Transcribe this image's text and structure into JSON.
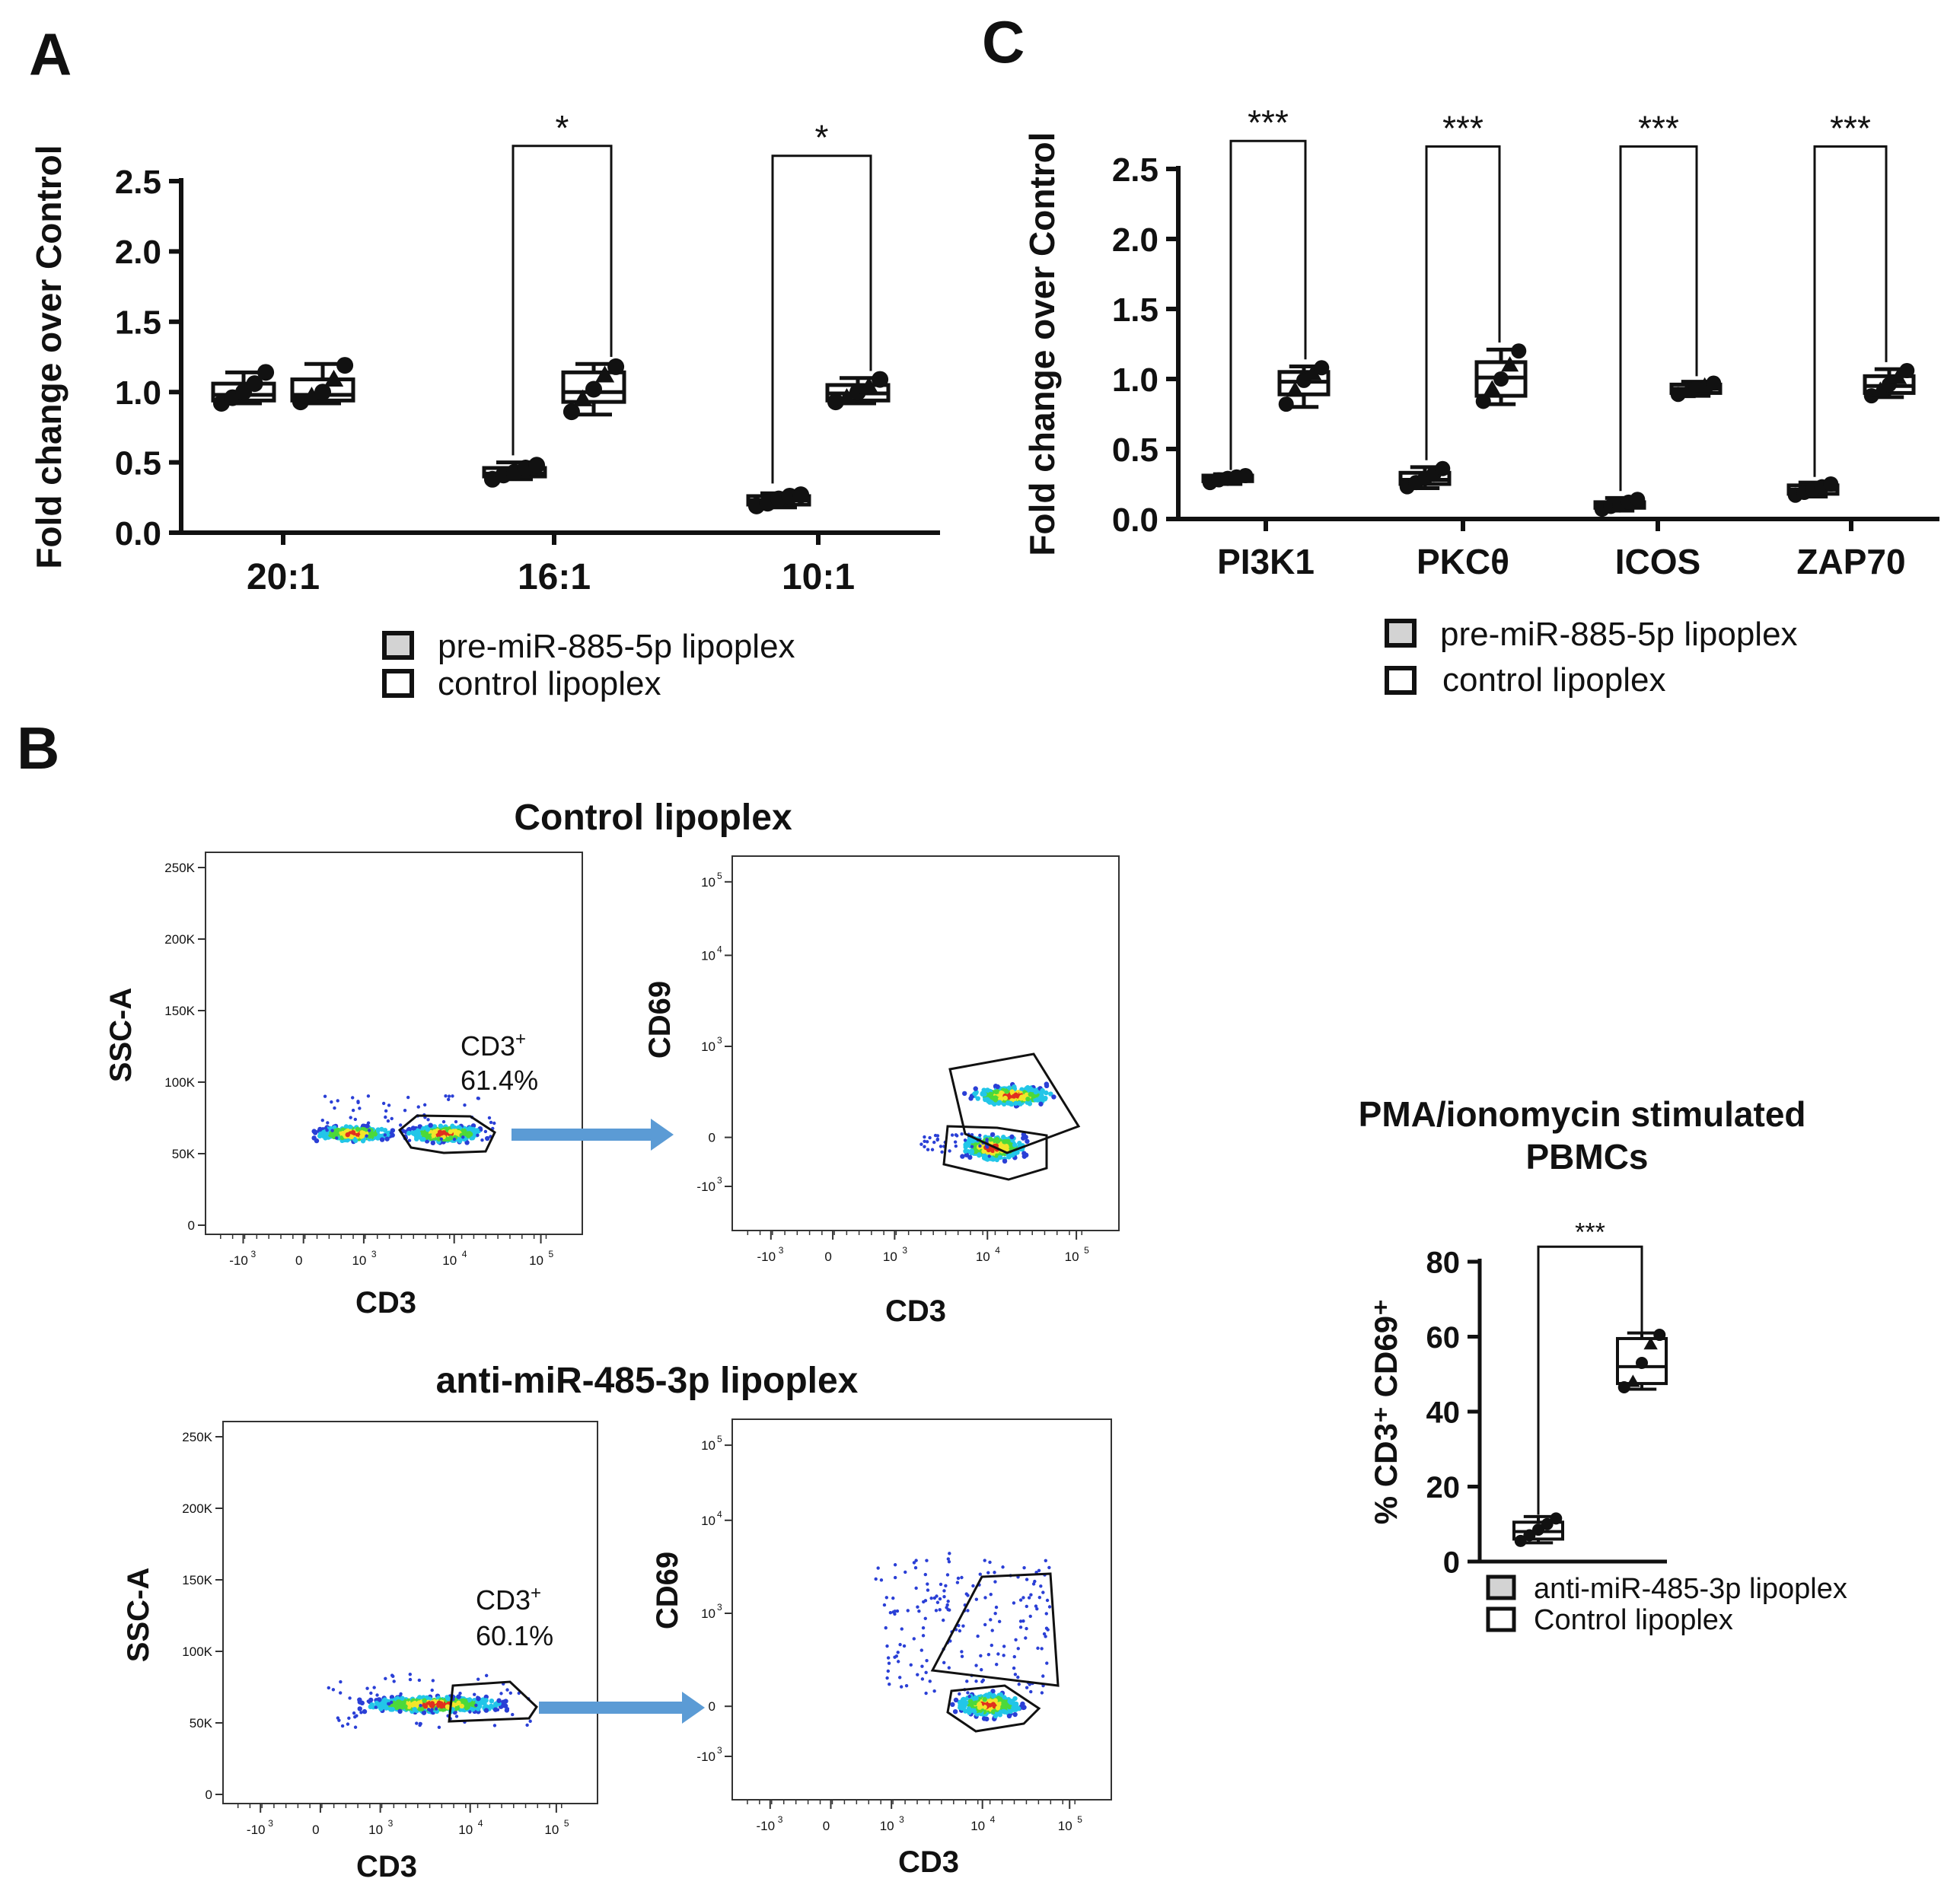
{
  "colors": {
    "ink": "#111111",
    "arrow": "#5b9bd5",
    "dot_blue": "#2a3fd6",
    "dot_cyan": "#22c6e8",
    "dot_green": "#4cd93a",
    "dot_yellow": "#f2e62a",
    "dot_red": "#e0301e",
    "swatch_grey": "#d3d3d3",
    "swatch_white": "#ffffff"
  },
  "panels": {
    "A": {
      "letter": "A"
    },
    "B": {
      "letter": "B"
    },
    "C": {
      "letter": "C"
    }
  },
  "legend_a": {
    "item1": "pre-miR-885-5p lipoplex",
    "item2": "control lipoplex"
  },
  "legend_c": {
    "item1": "pre-miR-885-5p lipoplex",
    "item2": "control lipoplex"
  },
  "legend_d": {
    "item1": "anti-miR-485-3p lipoplex",
    "item2": "Control lipoplex"
  },
  "flow": {
    "control": {
      "title": "Control lipoplex",
      "ssc_label": "SSC-A",
      "cd69_label": "CD69",
      "cd3_label_left": "CD3",
      "cd3_label_right": "CD3",
      "gate_name": "CD3",
      "gate_sup": "+",
      "gate_pct": "61.4%"
    },
    "anti": {
      "title": "anti-miR-485-3p lipoplex",
      "ssc_label": "SSC-A",
      "cd69_label": "CD69",
      "cd3_label_left": "CD3",
      "cd3_label_right": "CD3",
      "gate_name": "CD3",
      "gate_sup": "+",
      "gate_pct": "60.1%"
    },
    "ssc_ticks": [
      "0",
      "50K",
      "100K",
      "150K",
      "200K",
      "250K"
    ],
    "log_ticks": [
      "-10",
      "0",
      "10",
      "10",
      "10"
    ],
    "log_sups": [
      "3",
      "",
      "3",
      "4",
      "5"
    ]
  },
  "chart_data": [
    {
      "id": "A",
      "type": "box",
      "title": "",
      "xlabel": "",
      "ylabel": "Fold change over Control",
      "ylim": [
        0,
        2.5
      ],
      "yticks": [
        0.0,
        0.5,
        1.0,
        1.5,
        2.0,
        2.5
      ],
      "ytick_labels": [
        "0.0",
        "0.5",
        "1.0",
        "1.5",
        "2.0",
        "2.5"
      ],
      "categories": [
        "20:1",
        "16:1",
        "10:1"
      ],
      "series": [
        {
          "name": "pre-miR-885-5p lipoplex",
          "boxes": [
            {
              "min": 0.92,
              "q1": 0.94,
              "median": 0.98,
              "q3": 1.06,
              "max": 1.14,
              "points": [
                0.92,
                0.96,
                1.0,
                1.06,
                1.14
              ]
            },
            {
              "min": 0.38,
              "q1": 0.4,
              "median": 0.42,
              "q3": 0.46,
              "max": 0.5,
              "points": [
                0.38,
                0.41,
                0.43,
                0.46,
                0.48
              ]
            },
            {
              "min": 0.18,
              "q1": 0.2,
              "median": 0.23,
              "q3": 0.26,
              "max": 0.28,
              "points": [
                0.19,
                0.21,
                0.24,
                0.26,
                0.27
              ]
            }
          ]
        },
        {
          "name": "control lipoplex",
          "boxes": [
            {
              "min": 0.92,
              "q1": 0.94,
              "median": 0.98,
              "q3": 1.09,
              "max": 1.2,
              "points": [
                0.93,
                0.97,
                1.0,
                1.09,
                1.19
              ]
            },
            {
              "min": 0.84,
              "q1": 0.93,
              "median": 1.0,
              "q3": 1.14,
              "max": 1.2,
              "points": [
                0.86,
                0.95,
                1.02,
                1.12,
                1.18
              ]
            },
            {
              "min": 0.92,
              "q1": 0.94,
              "median": 0.99,
              "q3": 1.05,
              "max": 1.1,
              "points": [
                0.93,
                0.96,
                1.0,
                1.04,
                1.09
              ]
            }
          ]
        }
      ],
      "significance": [
        {
          "category": "16:1",
          "label": "*",
          "height": 2.75
        },
        {
          "category": "10:1",
          "label": "*",
          "height": 2.68
        }
      ]
    },
    {
      "id": "C",
      "type": "box",
      "title": "",
      "xlabel": "",
      "ylabel": "Fold change over Control",
      "ylim": [
        0,
        2.5
      ],
      "yticks": [
        0.0,
        0.5,
        1.0,
        1.5,
        2.0,
        2.5
      ],
      "ytick_labels": [
        "0.0",
        "0.5",
        "1.0",
        "1.5",
        "2.0",
        "2.5"
      ],
      "categories": [
        "PI3K1",
        "PKCθ",
        "ICOS",
        "ZAP70"
      ],
      "series": [
        {
          "name": "pre-miR-885-5p lipoplex",
          "boxes": [
            {
              "min": 0.25,
              "q1": 0.27,
              "median": 0.29,
              "q3": 0.31,
              "max": 0.32,
              "points": [
                0.26,
                0.28,
                0.29,
                0.3,
                0.31
              ]
            },
            {
              "min": 0.22,
              "q1": 0.25,
              "median": 0.28,
              "q3": 0.33,
              "max": 0.37,
              "points": [
                0.23,
                0.26,
                0.29,
                0.32,
                0.36
              ]
            },
            {
              "min": 0.06,
              "q1": 0.08,
              "median": 0.1,
              "q3": 0.12,
              "max": 0.15,
              "points": [
                0.07,
                0.09,
                0.1,
                0.12,
                0.14
              ]
            },
            {
              "min": 0.16,
              "q1": 0.18,
              "median": 0.21,
              "q3": 0.24,
              "max": 0.26,
              "points": [
                0.17,
                0.19,
                0.21,
                0.23,
                0.25
              ]
            }
          ]
        },
        {
          "name": "control lipoplex",
          "boxes": [
            {
              "min": 0.8,
              "q1": 0.89,
              "median": 0.98,
              "q3": 1.05,
              "max": 1.09,
              "points": [
                0.82,
                0.92,
                0.99,
                1.04,
                1.08
              ]
            },
            {
              "min": 0.82,
              "q1": 0.88,
              "median": 1.01,
              "q3": 1.12,
              "max": 1.21,
              "points": [
                0.84,
                0.93,
                1.0,
                1.1,
                1.2
              ]
            },
            {
              "min": 0.88,
              "q1": 0.9,
              "median": 0.93,
              "q3": 0.96,
              "max": 0.98,
              "points": [
                0.89,
                0.91,
                0.93,
                0.95,
                0.97
              ]
            },
            {
              "min": 0.87,
              "q1": 0.9,
              "median": 0.95,
              "q3": 1.02,
              "max": 1.07,
              "points": [
                0.88,
                0.92,
                0.96,
                1.01,
                1.06
              ]
            }
          ]
        }
      ],
      "significance": [
        {
          "category": "PI3K1",
          "label": "***",
          "height": 2.7
        },
        {
          "category": "PKCθ",
          "label": "***",
          "height": 2.66
        },
        {
          "category": "ICOS",
          "label": "***",
          "height": 2.66
        },
        {
          "category": "ZAP70",
          "label": "***",
          "height": 2.66
        }
      ]
    },
    {
      "id": "D",
      "type": "box",
      "title": "PMA/ionomycin stimulated\nPBMCs",
      "xlabel": "",
      "ylabel": "% CD3⁺ CD69⁺",
      "ylim": [
        0,
        80
      ],
      "yticks": [
        0,
        20,
        40,
        60,
        80
      ],
      "ytick_labels": [
        "0",
        "20",
        "40",
        "60",
        "80"
      ],
      "categories": [
        "anti-miR-485-3p lipoplex",
        "Control lipoplex"
      ],
      "series": [
        {
          "name": "anti-miR-485-3p lipoplex",
          "boxes": [
            {
              "min": 5,
              "q1": 6,
              "median": 8,
              "q3": 10.5,
              "max": 12,
              "points": [
                5.5,
                7,
                8.5,
                10,
                11.5
              ]
            }
          ]
        },
        {
          "name": "Control lipoplex",
          "boxes": [
            {
              "min": 46,
              "q1": 47.5,
              "median": 52,
              "q3": 59.5,
              "max": 61,
              "points": [
                46.5,
                48,
                53,
                58,
                60.5
              ]
            }
          ]
        }
      ],
      "significance": [
        {
          "pair": [
            "anti-miR-485-3p lipoplex",
            "Control lipoplex"
          ],
          "label": "***",
          "height": 84
        }
      ]
    }
  ]
}
